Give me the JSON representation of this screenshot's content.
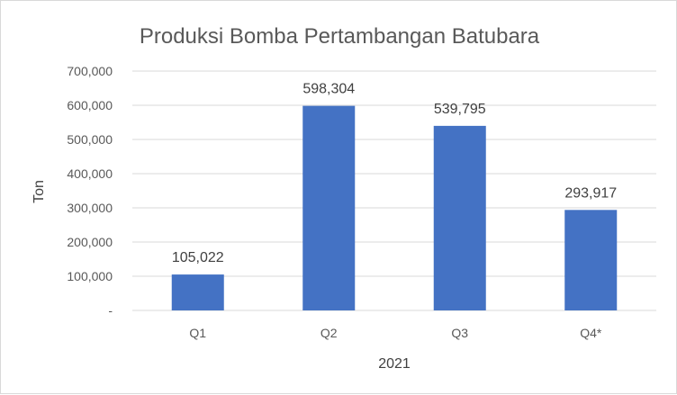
{
  "chart_data": {
    "type": "bar",
    "title": "Produksi Bomba Pertambangan Batubara",
    "xlabel": "2021",
    "ylabel": "Ton",
    "categories": [
      "Q1",
      "Q2",
      "Q3",
      "Q4*"
    ],
    "values": [
      105022,
      598304,
      539795,
      293917
    ],
    "data_labels": [
      "105,022",
      "598,304",
      "539,795",
      "293,917"
    ],
    "ylim": [
      0,
      700000
    ],
    "y_ticks": [
      0,
      100000,
      200000,
      300000,
      400000,
      500000,
      600000,
      700000
    ],
    "y_tick_labels": [
      "-",
      "100,000",
      "200,000",
      "300,000",
      "400,000",
      "500,000",
      "600,000",
      "700,000"
    ],
    "grid": true,
    "legend": "none",
    "bar_color": "#4472c4",
    "grid_color": "#d9d9d9"
  }
}
